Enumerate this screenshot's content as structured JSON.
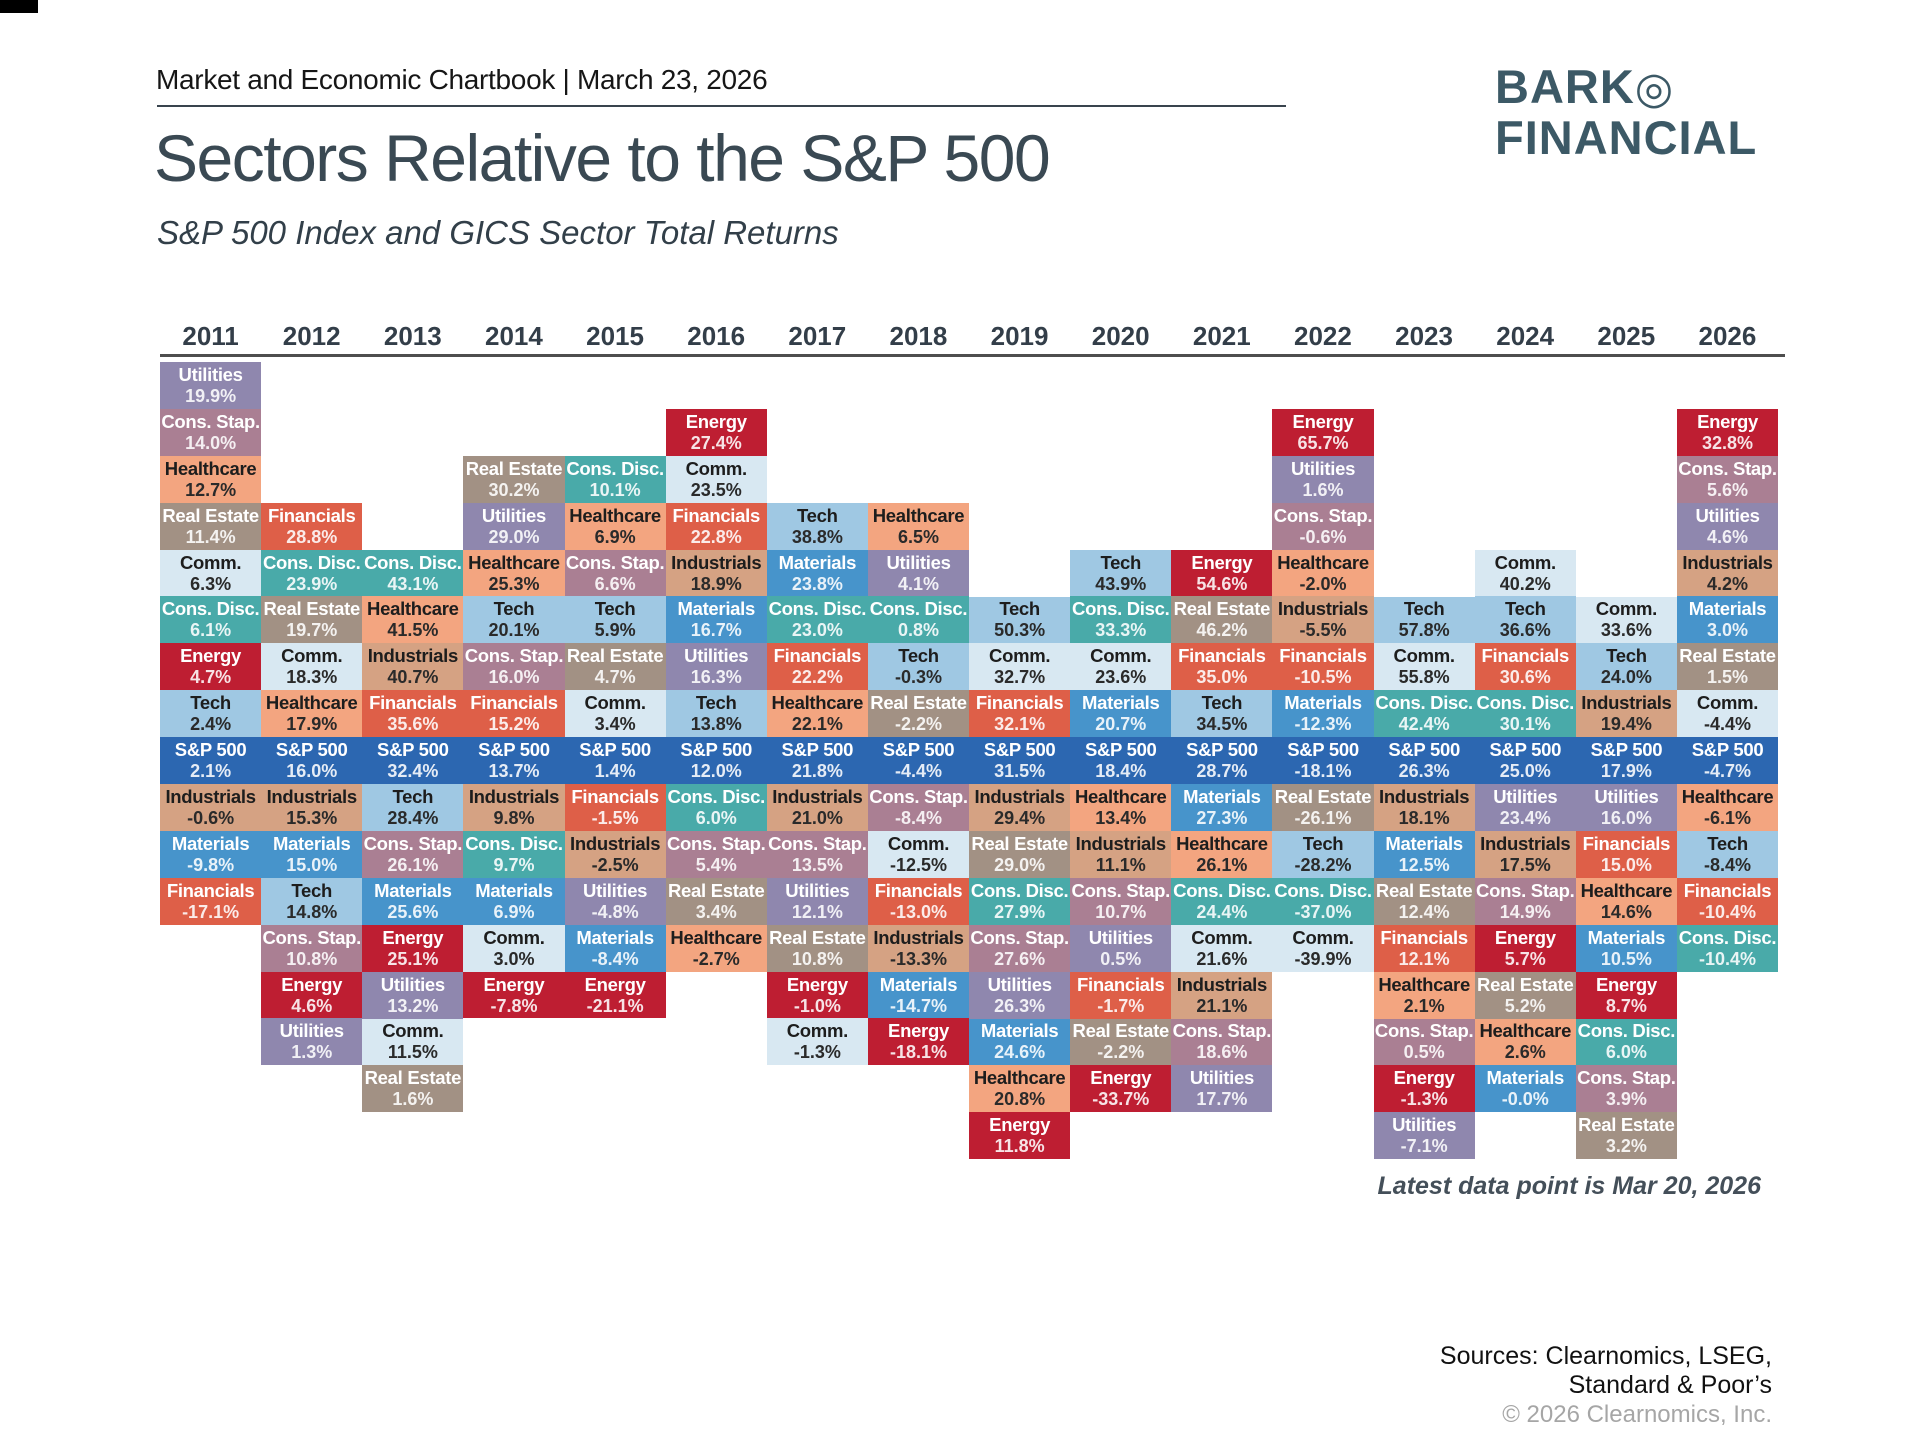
{
  "page": {
    "eyebrow": "Market and Economic Chartbook | March 23, 2026",
    "title": "Sectors Relative to the S&P 500",
    "subtitle": "S&P 500 Index and GICS Sector Total Returns",
    "logo": {
      "line1": "BARK",
      "symbol": "◎",
      "line2": "FINANCIAL"
    },
    "note": "Latest data point is Mar 20, 2026",
    "sources_line1": "Sources: Clearnomics, LSEG,",
    "sources_line2": "Standard & Poor’s",
    "copyright": "© 2026 Clearnomics, Inc."
  },
  "chart_data": {
    "type": "heatmap",
    "subtype": "sector-return-quilt",
    "description": "Annual total returns by GICS sector; each year-column is sorted best-to-worst and vertically aligned on the S&P 500 row (row index 8).",
    "values_are": "total_return_percent",
    "sp_alignment_row": 8,
    "years": [
      "2011",
      "2012",
      "2013",
      "2014",
      "2015",
      "2016",
      "2017",
      "2018",
      "2019",
      "2020",
      "2021",
      "2022",
      "2023",
      "2024",
      "2025",
      "2026"
    ],
    "sector_colors": {
      "Utilities": "#8F87AE",
      "Cons. Stap.": "#AA7F93",
      "Healthcare": "#F3A580",
      "Real Estate": "#A29184",
      "Comm.": "#D8E8F2",
      "Cons. Disc.": "#49AAA9",
      "Energy": "#BE1E32",
      "Tech": "#9FC8E3",
      "S&P 500": "#2C67B1",
      "Industrials": "#D5A283",
      "Materials": "#4794CB",
      "Financials": "#DE5F48"
    },
    "dark_text_sectors": [
      "Healthcare",
      "Comm.",
      "Tech",
      "Industrials"
    ],
    "columns": [
      {
        "year": "2011",
        "cells": [
          {
            "s": "Utilities",
            "v": "19.9%"
          },
          {
            "s": "Cons. Stap.",
            "v": "14.0%"
          },
          {
            "s": "Healthcare",
            "v": "12.7%"
          },
          {
            "s": "Real Estate",
            "v": "11.4%"
          },
          {
            "s": "Comm.",
            "v": "6.3%"
          },
          {
            "s": "Cons. Disc.",
            "v": "6.1%"
          },
          {
            "s": "Energy",
            "v": "4.7%"
          },
          {
            "s": "Tech",
            "v": "2.4%"
          },
          {
            "s": "S&P 500",
            "v": "2.1%"
          },
          {
            "s": "Industrials",
            "v": "-0.6%"
          },
          {
            "s": "Materials",
            "v": "-9.8%"
          },
          {
            "s": "Financials",
            "v": "-17.1%"
          }
        ]
      },
      {
        "year": "2012",
        "cells": [
          {
            "s": "Financials",
            "v": "28.8%"
          },
          {
            "s": "Cons. Disc.",
            "v": "23.9%"
          },
          {
            "s": "Real Estate",
            "v": "19.7%"
          },
          {
            "s": "Comm.",
            "v": "18.3%"
          },
          {
            "s": "Healthcare",
            "v": "17.9%"
          },
          {
            "s": "S&P 500",
            "v": "16.0%"
          },
          {
            "s": "Industrials",
            "v": "15.3%"
          },
          {
            "s": "Materials",
            "v": "15.0%"
          },
          {
            "s": "Tech",
            "v": "14.8%"
          },
          {
            "s": "Cons. Stap.",
            "v": "10.8%"
          },
          {
            "s": "Energy",
            "v": "4.6%"
          },
          {
            "s": "Utilities",
            "v": "1.3%"
          }
        ]
      },
      {
        "year": "2013",
        "cells": [
          {
            "s": "Cons. Disc.",
            "v": "43.1%"
          },
          {
            "s": "Healthcare",
            "v": "41.5%"
          },
          {
            "s": "Industrials",
            "v": "40.7%"
          },
          {
            "s": "Financials",
            "v": "35.6%"
          },
          {
            "s": "S&P 500",
            "v": "32.4%"
          },
          {
            "s": "Tech",
            "v": "28.4%"
          },
          {
            "s": "Cons. Stap.",
            "v": "26.1%"
          },
          {
            "s": "Materials",
            "v": "25.6%"
          },
          {
            "s": "Energy",
            "v": "25.1%"
          },
          {
            "s": "Utilities",
            "v": "13.2%"
          },
          {
            "s": "Comm.",
            "v": "11.5%"
          },
          {
            "s": "Real Estate",
            "v": "1.6%"
          }
        ]
      },
      {
        "year": "2014",
        "cells": [
          {
            "s": "Real Estate",
            "v": "30.2%"
          },
          {
            "s": "Utilities",
            "v": "29.0%"
          },
          {
            "s": "Healthcare",
            "v": "25.3%"
          },
          {
            "s": "Tech",
            "v": "20.1%"
          },
          {
            "s": "Cons. Stap.",
            "v": "16.0%"
          },
          {
            "s": "Financials",
            "v": "15.2%"
          },
          {
            "s": "S&P 500",
            "v": "13.7%"
          },
          {
            "s": "Industrials",
            "v": "9.8%"
          },
          {
            "s": "Cons. Disc.",
            "v": "9.7%"
          },
          {
            "s": "Materials",
            "v": "6.9%"
          },
          {
            "s": "Comm.",
            "v": "3.0%"
          },
          {
            "s": "Energy",
            "v": "-7.8%"
          }
        ]
      },
      {
        "year": "2015",
        "cells": [
          {
            "s": "Cons. Disc.",
            "v": "10.1%"
          },
          {
            "s": "Healthcare",
            "v": "6.9%"
          },
          {
            "s": "Cons. Stap.",
            "v": "6.6%"
          },
          {
            "s": "Tech",
            "v": "5.9%"
          },
          {
            "s": "Real Estate",
            "v": "4.7%"
          },
          {
            "s": "Comm.",
            "v": "3.4%"
          },
          {
            "s": "S&P 500",
            "v": "1.4%"
          },
          {
            "s": "Financials",
            "v": "-1.5%"
          },
          {
            "s": "Industrials",
            "v": "-2.5%"
          },
          {
            "s": "Utilities",
            "v": "-4.8%"
          },
          {
            "s": "Materials",
            "v": "-8.4%"
          },
          {
            "s": "Energy",
            "v": "-21.1%"
          }
        ]
      },
      {
        "year": "2016",
        "cells": [
          {
            "s": "Energy",
            "v": "27.4%"
          },
          {
            "s": "Comm.",
            "v": "23.5%"
          },
          {
            "s": "Financials",
            "v": "22.8%"
          },
          {
            "s": "Industrials",
            "v": "18.9%"
          },
          {
            "s": "Materials",
            "v": "16.7%"
          },
          {
            "s": "Utilities",
            "v": "16.3%"
          },
          {
            "s": "Tech",
            "v": "13.8%"
          },
          {
            "s": "S&P 500",
            "v": "12.0%"
          },
          {
            "s": "Cons. Disc.",
            "v": "6.0%"
          },
          {
            "s": "Cons. Stap.",
            "v": "5.4%"
          },
          {
            "s": "Real Estate",
            "v": "3.4%"
          },
          {
            "s": "Healthcare",
            "v": "-2.7%"
          }
        ]
      },
      {
        "year": "2017",
        "cells": [
          {
            "s": "Tech",
            "v": "38.8%"
          },
          {
            "s": "Materials",
            "v": "23.8%"
          },
          {
            "s": "Cons. Disc.",
            "v": "23.0%"
          },
          {
            "s": "Financials",
            "v": "22.2%"
          },
          {
            "s": "Healthcare",
            "v": "22.1%"
          },
          {
            "s": "S&P 500",
            "v": "21.8%"
          },
          {
            "s": "Industrials",
            "v": "21.0%"
          },
          {
            "s": "Cons. Stap.",
            "v": "13.5%"
          },
          {
            "s": "Utilities",
            "v": "12.1%"
          },
          {
            "s": "Real Estate",
            "v": "10.8%"
          },
          {
            "s": "Energy",
            "v": "-1.0%"
          },
          {
            "s": "Comm.",
            "v": "-1.3%"
          }
        ]
      },
      {
        "year": "2018",
        "cells": [
          {
            "s": "Healthcare",
            "v": "6.5%"
          },
          {
            "s": "Utilities",
            "v": "4.1%"
          },
          {
            "s": "Cons. Disc.",
            "v": "0.8%"
          },
          {
            "s": "Tech",
            "v": "-0.3%"
          },
          {
            "s": "Real Estate",
            "v": "-2.2%"
          },
          {
            "s": "S&P 500",
            "v": "-4.4%"
          },
          {
            "s": "Cons. Stap.",
            "v": "-8.4%"
          },
          {
            "s": "Comm.",
            "v": "-12.5%"
          },
          {
            "s": "Financials",
            "v": "-13.0%"
          },
          {
            "s": "Industrials",
            "v": "-13.3%"
          },
          {
            "s": "Materials",
            "v": "-14.7%"
          },
          {
            "s": "Energy",
            "v": "-18.1%"
          }
        ]
      },
      {
        "year": "2019",
        "cells": [
          {
            "s": "Tech",
            "v": "50.3%"
          },
          {
            "s": "Comm.",
            "v": "32.7%"
          },
          {
            "s": "Financials",
            "v": "32.1%"
          },
          {
            "s": "S&P 500",
            "v": "31.5%"
          },
          {
            "s": "Industrials",
            "v": "29.4%"
          },
          {
            "s": "Real Estate",
            "v": "29.0%"
          },
          {
            "s": "Cons. Disc.",
            "v": "27.9%"
          },
          {
            "s": "Cons. Stap.",
            "v": "27.6%"
          },
          {
            "s": "Utilities",
            "v": "26.3%"
          },
          {
            "s": "Materials",
            "v": "24.6%"
          },
          {
            "s": "Healthcare",
            "v": "20.8%"
          },
          {
            "s": "Energy",
            "v": "11.8%"
          }
        ]
      },
      {
        "year": "2020",
        "cells": [
          {
            "s": "Tech",
            "v": "43.9%"
          },
          {
            "s": "Cons. Disc.",
            "v": "33.3%"
          },
          {
            "s": "Comm.",
            "v": "23.6%"
          },
          {
            "s": "Materials",
            "v": "20.7%"
          },
          {
            "s": "S&P 500",
            "v": "18.4%"
          },
          {
            "s": "Healthcare",
            "v": "13.4%"
          },
          {
            "s": "Industrials",
            "v": "11.1%"
          },
          {
            "s": "Cons. Stap.",
            "v": "10.7%"
          },
          {
            "s": "Utilities",
            "v": "0.5%"
          },
          {
            "s": "Financials",
            "v": "-1.7%"
          },
          {
            "s": "Real Estate",
            "v": "-2.2%"
          },
          {
            "s": "Energy",
            "v": "-33.7%"
          }
        ]
      },
      {
        "year": "2021",
        "cells": [
          {
            "s": "Energy",
            "v": "54.6%"
          },
          {
            "s": "Real Estate",
            "v": "46.2%"
          },
          {
            "s": "Financials",
            "v": "35.0%"
          },
          {
            "s": "Tech",
            "v": "34.5%"
          },
          {
            "s": "S&P 500",
            "v": "28.7%"
          },
          {
            "s": "Materials",
            "v": "27.3%"
          },
          {
            "s": "Healthcare",
            "v": "26.1%"
          },
          {
            "s": "Cons. Disc.",
            "v": "24.4%"
          },
          {
            "s": "Comm.",
            "v": "21.6%"
          },
          {
            "s": "Industrials",
            "v": "21.1%"
          },
          {
            "s": "Cons. Stap.",
            "v": "18.6%"
          },
          {
            "s": "Utilities",
            "v": "17.7%"
          }
        ]
      },
      {
        "year": "2022",
        "cells": [
          {
            "s": "Energy",
            "v": "65.7%"
          },
          {
            "s": "Utilities",
            "v": "1.6%"
          },
          {
            "s": "Cons. Stap.",
            "v": "-0.6%"
          },
          {
            "s": "Healthcare",
            "v": "-2.0%"
          },
          {
            "s": "Industrials",
            "v": "-5.5%"
          },
          {
            "s": "Financials",
            "v": "-10.5%"
          },
          {
            "s": "Materials",
            "v": "-12.3%"
          },
          {
            "s": "S&P 500",
            "v": "-18.1%"
          },
          {
            "s": "Real Estate",
            "v": "-26.1%"
          },
          {
            "s": "Tech",
            "v": "-28.2%"
          },
          {
            "s": "Cons. Disc.",
            "v": "-37.0%"
          },
          {
            "s": "Comm.",
            "v": "-39.9%"
          }
        ]
      },
      {
        "year": "2023",
        "cells": [
          {
            "s": "Tech",
            "v": "57.8%"
          },
          {
            "s": "Comm.",
            "v": "55.8%"
          },
          {
            "s": "Cons. Disc.",
            "v": "42.4%"
          },
          {
            "s": "S&P 500",
            "v": "26.3%"
          },
          {
            "s": "Industrials",
            "v": "18.1%"
          },
          {
            "s": "Materials",
            "v": "12.5%"
          },
          {
            "s": "Real Estate",
            "v": "12.4%"
          },
          {
            "s": "Financials",
            "v": "12.1%"
          },
          {
            "s": "Healthcare",
            "v": "2.1%"
          },
          {
            "s": "Cons. Stap.",
            "v": "0.5%"
          },
          {
            "s": "Energy",
            "v": "-1.3%"
          },
          {
            "s": "Utilities",
            "v": "-7.1%"
          }
        ]
      },
      {
        "year": "2024",
        "cells": [
          {
            "s": "Comm.",
            "v": "40.2%"
          },
          {
            "s": "Tech",
            "v": "36.6%"
          },
          {
            "s": "Financials",
            "v": "30.6%"
          },
          {
            "s": "Cons. Disc.",
            "v": "30.1%"
          },
          {
            "s": "S&P 500",
            "v": "25.0%"
          },
          {
            "s": "Utilities",
            "v": "23.4%"
          },
          {
            "s": "Industrials",
            "v": "17.5%"
          },
          {
            "s": "Cons. Stap.",
            "v": "14.9%"
          },
          {
            "s": "Energy",
            "v": "5.7%"
          },
          {
            "s": "Real Estate",
            "v": "5.2%"
          },
          {
            "s": "Healthcare",
            "v": "2.6%"
          },
          {
            "s": "Materials",
            "v": "-0.0%"
          }
        ]
      },
      {
        "year": "2025",
        "cells": [
          {
            "s": "Comm.",
            "v": "33.6%"
          },
          {
            "s": "Tech",
            "v": "24.0%"
          },
          {
            "s": "Industrials",
            "v": "19.4%"
          },
          {
            "s": "S&P 500",
            "v": "17.9%"
          },
          {
            "s": "Utilities",
            "v": "16.0%"
          },
          {
            "s": "Financials",
            "v": "15.0%"
          },
          {
            "s": "Healthcare",
            "v": "14.6%"
          },
          {
            "s": "Materials",
            "v": "10.5%"
          },
          {
            "s": "Energy",
            "v": "8.7%"
          },
          {
            "s": "Cons. Disc.",
            "v": "6.0%"
          },
          {
            "s": "Cons. Stap.",
            "v": "3.9%"
          },
          {
            "s": "Real Estate",
            "v": "3.2%"
          }
        ]
      },
      {
        "year": "2026",
        "cells": [
          {
            "s": "Energy",
            "v": "32.8%"
          },
          {
            "s": "Cons. Stap.",
            "v": "5.6%"
          },
          {
            "s": "Utilities",
            "v": "4.6%"
          },
          {
            "s": "Industrials",
            "v": "4.2%"
          },
          {
            "s": "Materials",
            "v": "3.0%"
          },
          {
            "s": "Real Estate",
            "v": "1.5%"
          },
          {
            "s": "Comm.",
            "v": "-4.4%"
          },
          {
            "s": "S&P 500",
            "v": "-4.7%"
          },
          {
            "s": "Healthcare",
            "v": "-6.1%"
          },
          {
            "s": "Tech",
            "v": "-8.4%"
          },
          {
            "s": "Financials",
            "v": "-10.4%"
          },
          {
            "s": "Cons. Disc.",
            "v": "-10.4%"
          }
        ]
      }
    ]
  }
}
